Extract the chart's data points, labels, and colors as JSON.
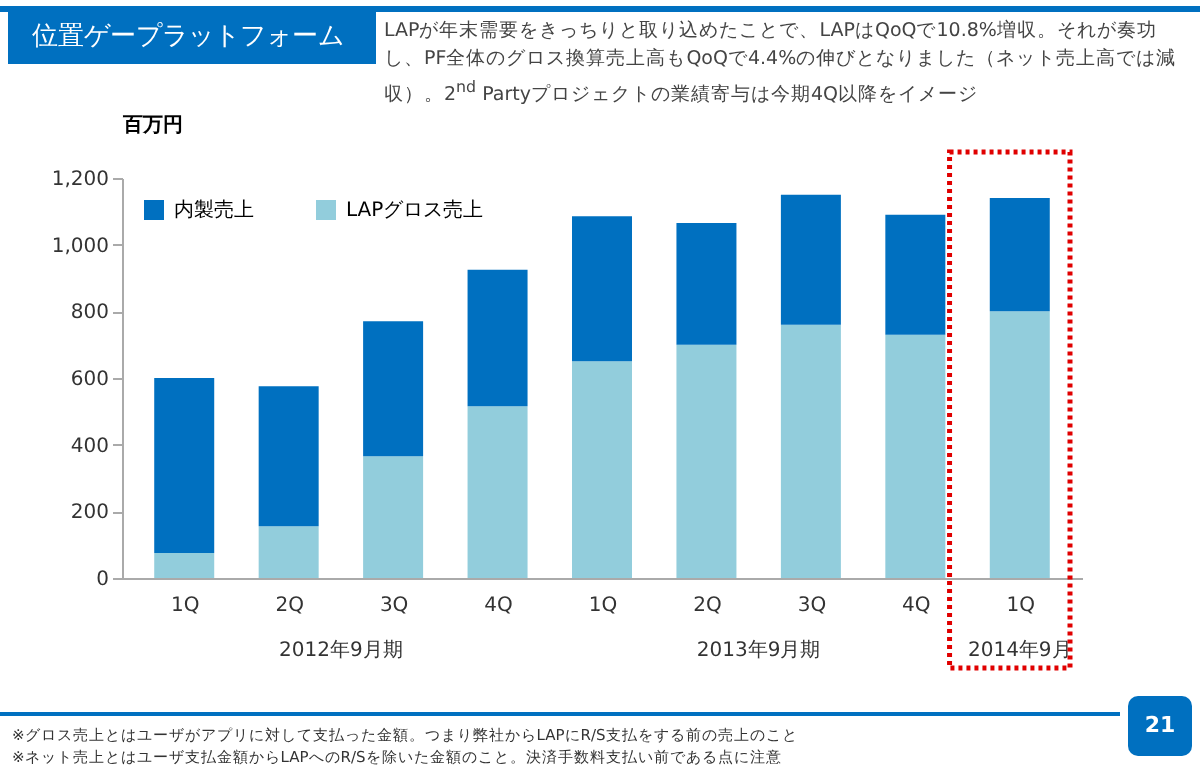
{
  "chart_data": {
    "type": "bar",
    "title": "位置ゲープラットフォーム",
    "subtitle": "LAPが年末需要をきっちりと取り込めたことで、LAPはQoQで10.8%増収。それが奏功し、PF全体のグロス換算売上高もQoQで4.4%の伸びとなりました（ネット売上高では減収）。2$^{nd}$ Partyプロジェクトの業績寄与は今期4Q以降をイメージ",
    "ylabel": "百万円",
    "categories": [
      "1Q",
      "2Q",
      "3Q",
      "4Q",
      "1Q",
      "2Q",
      "3Q",
      "4Q",
      "1Q"
    ],
    "series": [
      {
        "name": "LAPグロス売上",
        "color": "#92cddc",
        "values": [
          75,
          155,
          365,
          515,
          650,
          700,
          760,
          730,
          800
        ]
      },
      {
        "name": "内製売上",
        "color": "#0070c0",
        "values": [
          525,
          420,
          405,
          410,
          435,
          365,
          390,
          360,
          340
        ]
      }
    ],
    "stacked": true,
    "ylim": [
      0,
      1200
    ],
    "yticks": [
      0,
      200,
      400,
      600,
      800,
      {
        "value": 1000,
        "label": "1,000"
      },
      {
        "value": 1200,
        "label": "1,200"
      }
    ],
    "legend": "top left",
    "annotations": [
      "2012年9月期",
      "2013年9月期",
      "2014年9月",
      "※グロス売上とはユーザがアプリに対して支払った金額。つまり弊社からLAPにR/S支払をする前の売上のこと",
      "※ネット売上とはユーザ支払金額からLAPへのR/Sを除いた金額のこと。決済手数料支払い前である点に注意",
      "21"
    ]
  }
}
